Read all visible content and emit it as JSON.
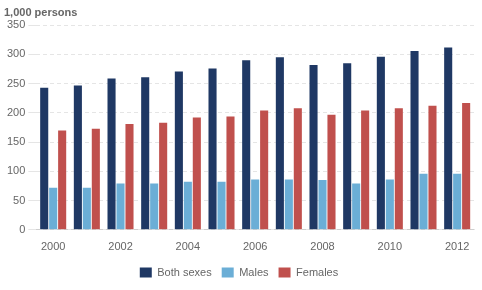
{
  "chart_data": {
    "type": "bar",
    "ylabel": "1,000 persons",
    "categories": [
      "2000",
      null,
      "2002",
      null,
      "2004",
      null,
      "2006",
      null,
      "2008",
      null,
      "2010",
      null,
      "2012"
    ],
    "series": [
      {
        "name": "Both sexes",
        "color": "#1F3864",
        "values": [
          243,
          247,
          259,
          261,
          271,
          276,
          290,
          295,
          282,
          285,
          296,
          306,
          312
        ]
      },
      {
        "name": "Males",
        "color": "#6BAED6",
        "values": [
          72,
          72,
          79,
          79,
          82,
          82,
          86,
          86,
          85,
          79,
          86,
          96,
          96
        ]
      },
      {
        "name": "Females",
        "color": "#C0504D",
        "values": [
          170,
          173,
          181,
          183,
          192,
          194,
          204,
          208,
          197,
          204,
          208,
          212,
          217
        ]
      }
    ],
    "ylim": [
      0,
      350
    ],
    "yticks": [
      0,
      50,
      100,
      150,
      200,
      250,
      300,
      350
    ],
    "grid": true,
    "legend": "bottom"
  }
}
